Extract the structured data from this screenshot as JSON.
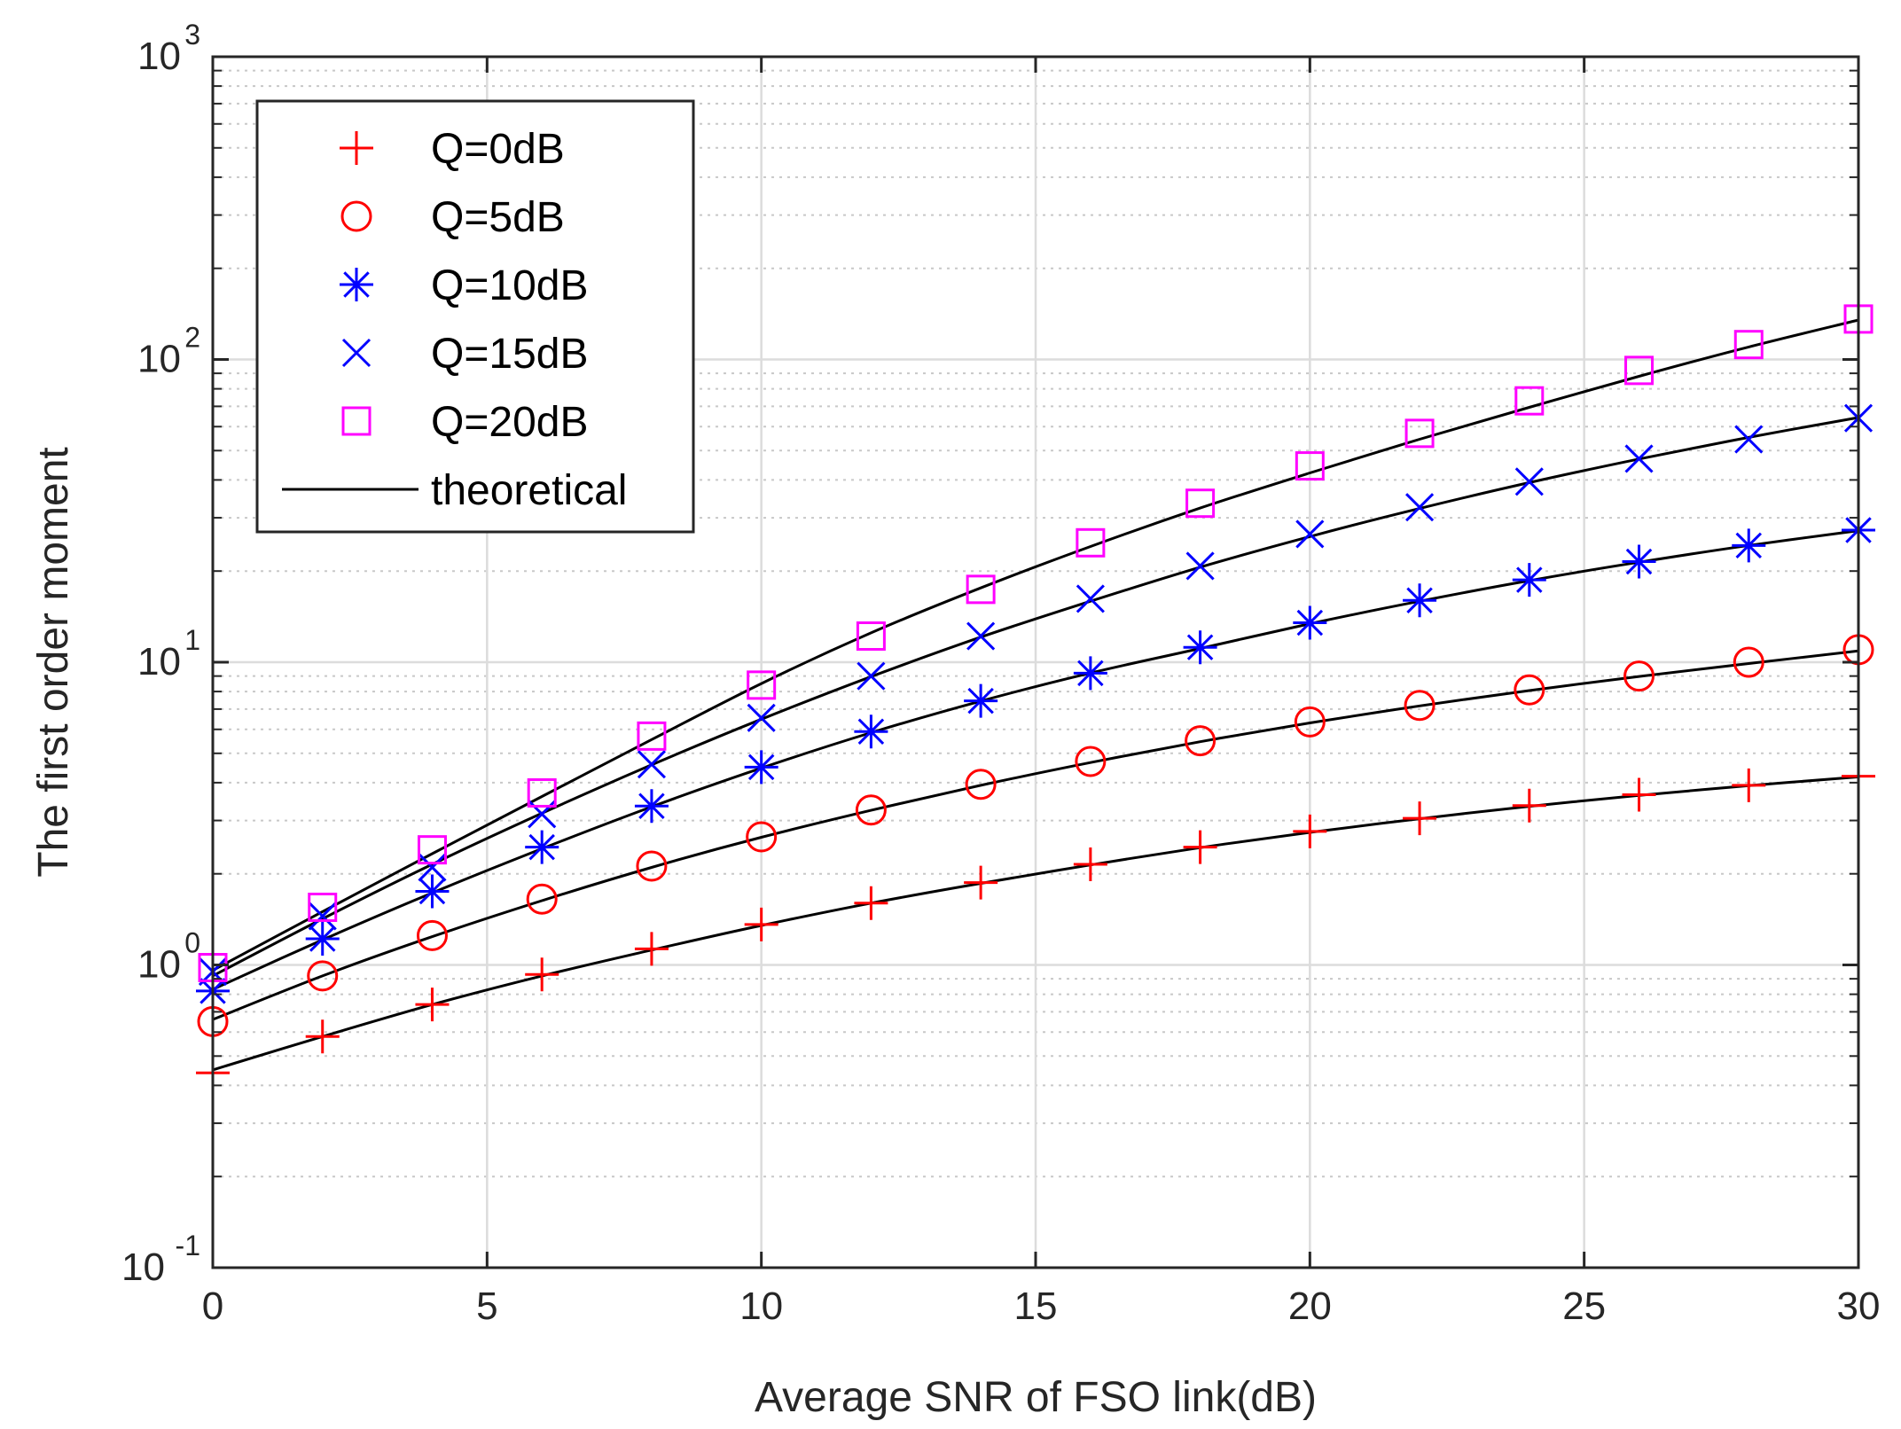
{
  "chart_data": {
    "type": "line",
    "xlabel": "Average SNR of FSO link(dB)",
    "ylabel": "The first order moment",
    "xscale": "linear",
    "yscale": "log",
    "xlim": [
      0,
      30
    ],
    "ylim": [
      0.1,
      1000
    ],
    "x_ticks": [
      "0",
      "5",
      "10",
      "15",
      "20",
      "25",
      "30"
    ],
    "y_ticks": [
      {
        "value": 0.1,
        "base": "10",
        "exp": "-1"
      },
      {
        "value": 1,
        "base": "10",
        "exp": "0"
      },
      {
        "value": 10,
        "base": "10",
        "exp": "1"
      },
      {
        "value": 100,
        "base": "10",
        "exp": "2"
      },
      {
        "value": 1000,
        "base": "10",
        "exp": "3"
      }
    ],
    "grid": true,
    "legend_position": "top-left",
    "x": [
      0,
      2,
      4,
      6,
      8,
      10,
      12,
      14,
      16,
      18,
      20,
      22,
      24,
      26,
      28,
      30
    ],
    "series": [
      {
        "name": "Q=0dB",
        "marker": "plus",
        "color": "#ff0000",
        "values": [
          0.44,
          0.58,
          0.74,
          0.93,
          1.13,
          1.36,
          1.6,
          1.87,
          2.15,
          2.45,
          2.76,
          3.05,
          3.36,
          3.65,
          3.92,
          4.2
        ]
      },
      {
        "name": "Q=5dB",
        "marker": "circle",
        "color": "#ff0000",
        "values": [
          0.65,
          0.92,
          1.25,
          1.65,
          2.12,
          2.65,
          3.25,
          3.95,
          4.7,
          5.5,
          6.35,
          7.2,
          8.1,
          9.0,
          10.0,
          11.0
        ]
      },
      {
        "name": "Q=10dB",
        "marker": "asterisk",
        "color": "#0000ff",
        "values": [
          0.82,
          1.22,
          1.75,
          2.45,
          3.35,
          4.5,
          5.9,
          7.45,
          9.2,
          11.2,
          13.5,
          16.0,
          18.7,
          21.5,
          24.3,
          27.3
        ]
      },
      {
        "name": "Q=15dB",
        "marker": "cross",
        "color": "#0000ff",
        "values": [
          0.95,
          1.45,
          2.1,
          3.15,
          4.6,
          6.55,
          9.0,
          12.2,
          16.2,
          20.8,
          26.5,
          32.5,
          39.5,
          47.0,
          54.5,
          64.0
        ]
      },
      {
        "name": "Q=20dB",
        "marker": "square",
        "color": "#ff00ff",
        "values": [
          0.98,
          1.55,
          2.4,
          3.7,
          5.7,
          8.4,
          12.2,
          17.4,
          24.8,
          33.5,
          44.5,
          57.0,
          73.0,
          92.0,
          112.0,
          136.0
        ]
      }
    ],
    "theory": {
      "name": "theoretical",
      "color": "#000000",
      "curves": [
        [
          0.45,
          0.58,
          0.74,
          0.92,
          1.12,
          1.35,
          1.6,
          1.86,
          2.14,
          2.44,
          2.74,
          3.04,
          3.34,
          3.63,
          3.91,
          4.18
        ],
        [
          0.66,
          0.92,
          1.24,
          1.63,
          2.1,
          2.64,
          3.24,
          3.92,
          4.66,
          5.46,
          6.3,
          7.17,
          8.06,
          8.97,
          9.9,
          10.9
        ],
        [
          0.83,
          1.21,
          1.73,
          2.42,
          3.33,
          4.47,
          5.85,
          7.44,
          9.21,
          11.1,
          13.4,
          15.9,
          18.6,
          21.4,
          24.3,
          27.2
        ],
        [
          0.92,
          1.42,
          2.15,
          3.17,
          4.58,
          6.48,
          8.96,
          12.1,
          15.9,
          20.6,
          26.0,
          32.2,
          39.2,
          46.9,
          55.3,
          64.3
        ],
        [
          0.96,
          1.5,
          2.33,
          3.6,
          5.55,
          8.5,
          12.5,
          17.6,
          24.1,
          32.3,
          42.2,
          54.5,
          69.5,
          88.0,
          110.0,
          135.0
        ]
      ]
    }
  }
}
